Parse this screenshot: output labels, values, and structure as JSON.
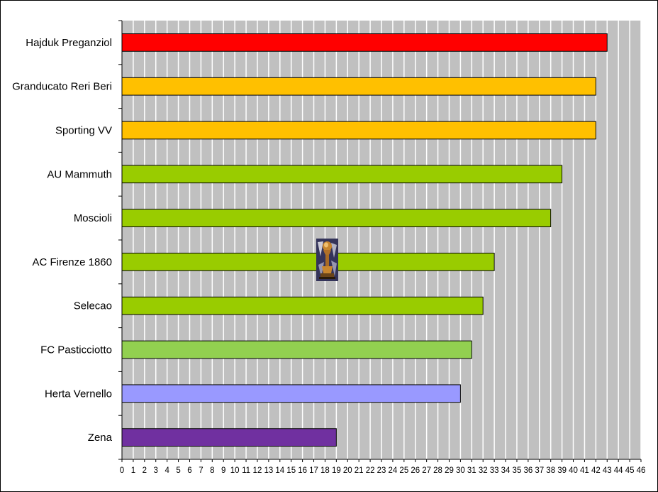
{
  "chart_data": {
    "type": "bar",
    "orientation": "horizontal",
    "title": "",
    "xlabel": "",
    "ylabel": "",
    "xlim": [
      0,
      46
    ],
    "grid": true,
    "legend": "none",
    "categories": [
      "Hajduk Preganziol",
      "Granducato Reri Beri",
      "Sporting VV",
      "AU Mammuth",
      "Moscioli",
      "AC Firenze 1860",
      "Selecao",
      "FC Pasticciotto",
      "Herta Vernello",
      "Zena"
    ],
    "values": [
      43,
      42,
      42,
      39,
      38,
      33,
      32,
      31,
      30,
      19
    ],
    "bar_colors": [
      "#ff0000",
      "#ffc000",
      "#ffc000",
      "#99cc00",
      "#99cc00",
      "#99cc00",
      "#99cc00",
      "#92d050",
      "#9999ff",
      "#7030a0"
    ],
    "ticks": [
      0,
      1,
      2,
      3,
      4,
      5,
      6,
      7,
      8,
      9,
      10,
      11,
      12,
      13,
      14,
      15,
      16,
      17,
      18,
      19,
      20,
      21,
      22,
      23,
      24,
      25,
      26,
      27,
      28,
      29,
      30,
      31,
      32,
      33,
      34,
      35,
      36,
      37,
      38,
      39,
      40,
      41,
      42,
      43,
      44,
      45,
      46
    ],
    "plot_background": "#c0c0c0",
    "grid_color": "#ffffff",
    "annotation_icon": "trophy-icon"
  }
}
